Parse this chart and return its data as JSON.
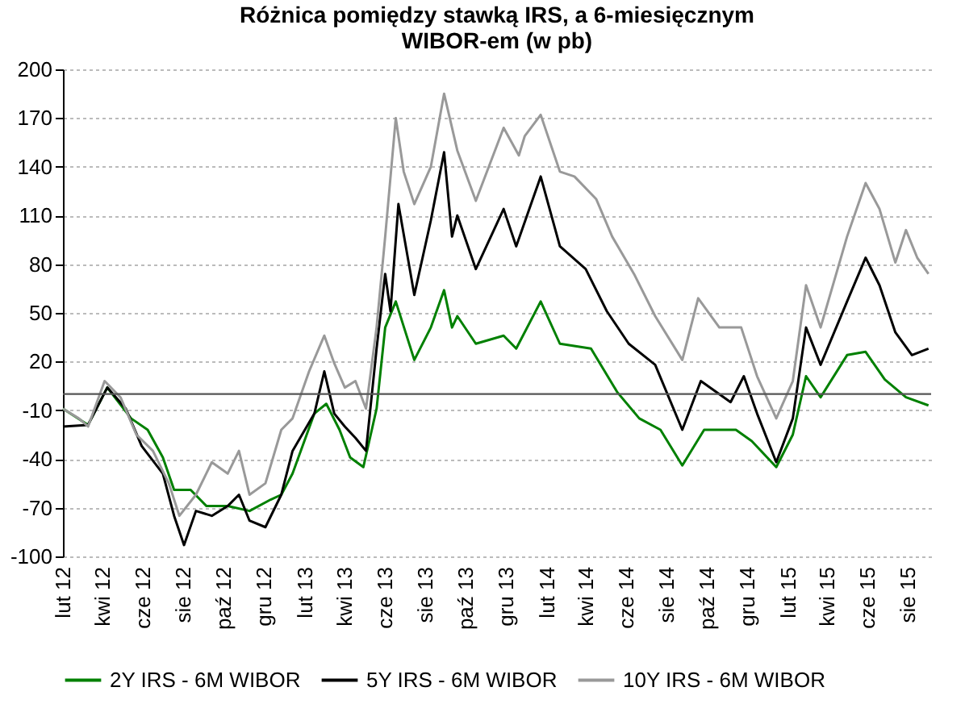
{
  "chart_data": {
    "type": "line",
    "title": "Różnica pomiędzy stawką IRS, a 6-miesięcznym\nWIBOR-em (w pb)",
    "xlim": [
      "2012-02-01",
      "2015-09-05"
    ],
    "xticks": [
      {
        "value": "2012-02-01",
        "label": "lut 12"
      },
      {
        "value": "2012-04-01",
        "label": "kwi 12"
      },
      {
        "value": "2012-06-01",
        "label": "cze 12"
      },
      {
        "value": "2012-08-01",
        "label": "sie 12"
      },
      {
        "value": "2012-10-01",
        "label": "paź 12"
      },
      {
        "value": "2012-12-01",
        "label": "gru 12"
      },
      {
        "value": "2013-02-01",
        "label": "lut 13"
      },
      {
        "value": "2013-04-01",
        "label": "kwi 13"
      },
      {
        "value": "2013-06-01",
        "label": "cze 13"
      },
      {
        "value": "2013-08-01",
        "label": "sie 13"
      },
      {
        "value": "2013-10-01",
        "label": "paź 13"
      },
      {
        "value": "2013-12-01",
        "label": "gru 13"
      },
      {
        "value": "2014-02-01",
        "label": "lut 14"
      },
      {
        "value": "2014-04-01",
        "label": "kwi 14"
      },
      {
        "value": "2014-06-01",
        "label": "cze 14"
      },
      {
        "value": "2014-08-01",
        "label": "sie 14"
      },
      {
        "value": "2014-10-01",
        "label": "paź 14"
      },
      {
        "value": "2014-12-01",
        "label": "gru 14"
      },
      {
        "value": "2015-02-01",
        "label": "lut 15"
      },
      {
        "value": "2015-04-01",
        "label": "kwi 15"
      },
      {
        "value": "2015-06-01",
        "label": "cze 15"
      },
      {
        "value": "2015-08-01",
        "label": "sie 15"
      }
    ],
    "ylim": [
      -100,
      200
    ],
    "yticks": [
      -100,
      -70,
      -40,
      -10,
      20,
      50,
      80,
      110,
      140,
      170,
      200
    ],
    "grid": "y",
    "legend": "bottom",
    "marker": "none",
    "line_style": "solid",
    "ref_lines": [
      {
        "axis": "y",
        "value": 0,
        "color": "#555555"
      }
    ],
    "series": [
      {
        "name": "2Y IRS - 6M WIBOR",
        "color": "#008000",
        "x": [
          "2012-02-01",
          "2012-03-10",
          "2012-04-08",
          "2012-05-14",
          "2012-06-08",
          "2012-07-01",
          "2012-07-18",
          "2012-08-12",
          "2012-09-05",
          "2012-10-07",
          "2012-11-09",
          "2012-12-11",
          "2012-12-27",
          "2013-01-13",
          "2013-02-15",
          "2013-03-05",
          "2013-03-25",
          "2013-04-10",
          "2013-04-30",
          "2013-05-20",
          "2013-06-02",
          "2013-06-18",
          "2013-07-16",
          "2013-08-10",
          "2013-08-30",
          "2013-09-11",
          "2013-09-19",
          "2013-10-17",
          "2013-11-28",
          "2013-12-17",
          "2014-01-23",
          "2014-02-21",
          "2014-04-09",
          "2014-05-19",
          "2014-06-21",
          "2014-07-23",
          "2014-08-25",
          "2014-09-27",
          "2014-11-14",
          "2014-12-08",
          "2015-01-14",
          "2015-02-08",
          "2015-02-28",
          "2015-03-22",
          "2015-05-01",
          "2015-05-29",
          "2015-06-27",
          "2015-07-29",
          "2015-09-01"
        ],
        "values": [
          -9,
          -19,
          4,
          -15,
          -22,
          -39,
          -59,
          -59,
          -69,
          -69,
          -72,
          -65,
          -62,
          -49,
          -12,
          -6,
          -22,
          -39,
          -45,
          -9,
          41,
          57,
          21,
          41,
          64,
          41,
          48,
          31,
          36,
          28,
          57,
          31,
          28,
          1,
          -15,
          -22,
          -44,
          -22,
          -22,
          -29,
          -45,
          -25,
          11,
          -2,
          24,
          26,
          9,
          -2,
          -7
        ]
      },
      {
        "name": "5Y IRS - 6M WIBOR",
        "color": "#000000",
        "x": [
          "2012-02-01",
          "2012-03-10",
          "2012-04-08",
          "2012-05-06",
          "2012-05-30",
          "2012-07-01",
          "2012-07-18",
          "2012-08-02",
          "2012-08-20",
          "2012-09-13",
          "2012-10-07",
          "2012-10-24",
          "2012-11-09",
          "2012-12-03",
          "2012-12-27",
          "2013-01-13",
          "2013-02-15",
          "2013-03-02",
          "2013-03-17",
          "2013-04-02",
          "2013-04-18",
          "2013-05-04",
          "2013-05-20",
          "2013-06-02",
          "2013-06-10",
          "2013-06-22",
          "2013-07-16",
          "2013-08-10",
          "2013-08-30",
          "2013-09-11",
          "2013-09-19",
          "2013-10-17",
          "2013-11-28",
          "2013-12-17",
          "2014-01-23",
          "2014-02-21",
          "2014-04-01",
          "2014-05-03",
          "2014-06-05",
          "2014-07-15",
          "2014-08-25",
          "2014-09-22",
          "2014-11-06",
          "2014-11-26",
          "2014-12-16",
          "2015-01-14",
          "2015-02-08",
          "2015-02-28",
          "2015-03-22",
          "2015-05-01",
          "2015-05-29",
          "2015-06-19",
          "2015-07-13",
          "2015-08-07",
          "2015-09-01"
        ],
        "values": [
          -20,
          -19,
          4,
          -9,
          -32,
          -49,
          -75,
          -93,
          -72,
          -75,
          -69,
          -62,
          -78,
          -82,
          -62,
          -35,
          -12,
          14,
          -12,
          -20,
          -27,
          -35,
          28,
          74,
          51,
          117,
          61,
          107,
          149,
          97,
          110,
          77,
          114,
          91,
          134,
          91,
          77,
          51,
          31,
          18,
          -22,
          8,
          -5,
          11,
          -12,
          -42,
          -15,
          41,
          18,
          57,
          84,
          67,
          38,
          24,
          28
        ]
      },
      {
        "name": "10Y IRS - 6M WIBOR",
        "color": "#999999",
        "x": [
          "2012-02-01",
          "2012-02-25",
          "2012-03-10",
          "2012-04-04",
          "2012-04-28",
          "2012-05-22",
          "2012-06-16",
          "2012-07-10",
          "2012-07-26",
          "2012-08-20",
          "2012-09-13",
          "2012-10-07",
          "2012-10-24",
          "2012-11-09",
          "2012-12-03",
          "2012-12-27",
          "2013-01-13",
          "2013-02-07",
          "2013-03-02",
          "2013-03-17",
          "2013-04-02",
          "2013-04-18",
          "2013-05-04",
          "2013-05-20",
          "2013-06-02",
          "2013-06-18",
          "2013-06-30",
          "2013-07-16",
          "2013-08-10",
          "2013-08-30",
          "2013-09-19",
          "2013-10-17",
          "2013-11-28",
          "2013-12-21",
          "2013-12-30",
          "2014-01-23",
          "2014-02-21",
          "2014-03-15",
          "2014-04-17",
          "2014-05-11",
          "2014-06-13",
          "2014-07-15",
          "2014-08-25",
          "2014-09-18",
          "2014-10-20",
          "2014-11-22",
          "2014-12-16",
          "2015-01-14",
          "2015-02-08",
          "2015-02-28",
          "2015-03-22",
          "2015-05-01",
          "2015-05-29",
          "2015-06-19",
          "2015-07-13",
          "2015-07-29",
          "2015-08-15",
          "2015-09-01"
        ],
        "values": [
          -9,
          -15,
          -20,
          8,
          -2,
          -25,
          -35,
          -55,
          -75,
          -62,
          -42,
          -49,
          -35,
          -62,
          -55,
          -22,
          -15,
          14,
          36,
          19,
          4,
          8,
          -9,
          41,
          97,
          170,
          137,
          117,
          140,
          185,
          150,
          119,
          164,
          147,
          159,
          172,
          137,
          134,
          120,
          97,
          74,
          48,
          21,
          59,
          41,
          41,
          11,
          -15,
          8,
          67,
          41,
          97,
          130,
          114,
          81,
          101,
          84,
          74
        ]
      }
    ]
  }
}
